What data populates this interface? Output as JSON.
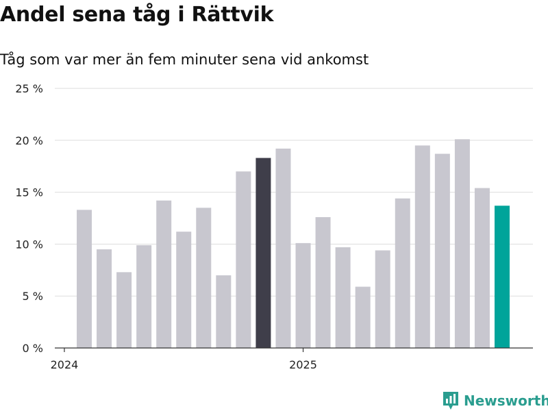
{
  "header": {
    "title": "Andel sena tåg i Rättvik",
    "subtitle": "Tåg som var mer än fem minuter sena vid ankomst"
  },
  "brand": {
    "name": "Newsworthy",
    "icon": "newsworthy-logo-icon",
    "color": "#2a9d8f"
  },
  "colors": {
    "bar_default": "#c8c7cf",
    "bar_highlight": "#3f3e4a",
    "bar_latest": "#00a49a",
    "grid": "#dddddd",
    "axis": "#333333"
  },
  "chart_data": {
    "type": "bar",
    "title": "Andel sena tåg i Rättvik",
    "subtitle": "Tåg som var mer än fem minuter sena vid ankomst",
    "ylim": [
      0,
      25
    ],
    "yticks": [
      0,
      5,
      10,
      15,
      20,
      25
    ],
    "ytick_labels": [
      "0 %",
      "5 %",
      "10 %",
      "15 %",
      "20 %",
      "25 %"
    ],
    "xtick_labels": [
      {
        "label": "2024",
        "month": "2024-01"
      },
      {
        "label": "2025",
        "month": "2025-01"
      }
    ],
    "categories": [
      "2024-02",
      "2024-03",
      "2024-04",
      "2024-05",
      "2024-06",
      "2024-07",
      "2024-08",
      "2024-09",
      "2024-10",
      "2024-11",
      "2024-12",
      "2025-01",
      "2025-02",
      "2025-03",
      "2025-04",
      "2025-05",
      "2025-06",
      "2025-07",
      "2025-08",
      "2025-09",
      "2025-10",
      "2025-11"
    ],
    "values": [
      13.3,
      9.5,
      7.3,
      9.9,
      14.2,
      11.2,
      13.5,
      7.0,
      17.0,
      18.3,
      19.2,
      10.1,
      12.6,
      9.7,
      5.9,
      9.4,
      14.4,
      19.5,
      18.7,
      20.1,
      15.4,
      13.7
    ],
    "highlight": {
      "2024-11": "bar_highlight",
      "2025-11": "bar_latest"
    },
    "grid": true
  }
}
